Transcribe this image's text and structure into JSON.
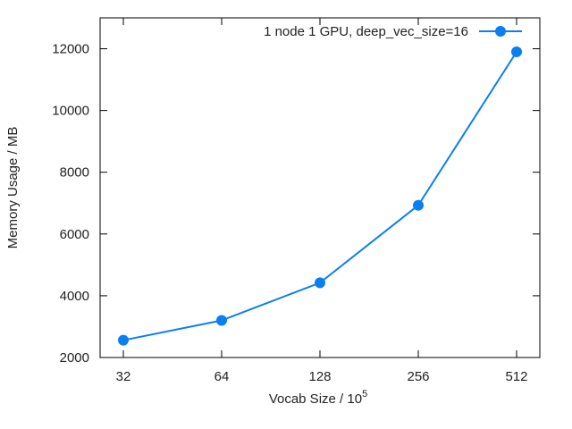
{
  "chart_data": {
    "type": "line",
    "x_scale": "log2",
    "categories": [
      "32",
      "64",
      "128",
      "256",
      "512"
    ],
    "x": [
      32,
      64,
      128,
      256,
      512
    ],
    "series": [
      {
        "name": "1 node 1 GPU, deep_vec_size=16",
        "values": [
          2560,
          3200,
          4420,
          6930,
          11900
        ],
        "color": "#0a7ff0",
        "marker": "circle"
      }
    ],
    "xlabel": "Vocab Size / 10",
    "xlabel_superscript": "5",
    "ylabel": "Memory Usage / MB",
    "ylim": [
      2000,
      13000
    ],
    "yticks": [
      2000,
      4000,
      6000,
      8000,
      10000,
      12000
    ],
    "legend_position": "top-right",
    "grid": false
  }
}
